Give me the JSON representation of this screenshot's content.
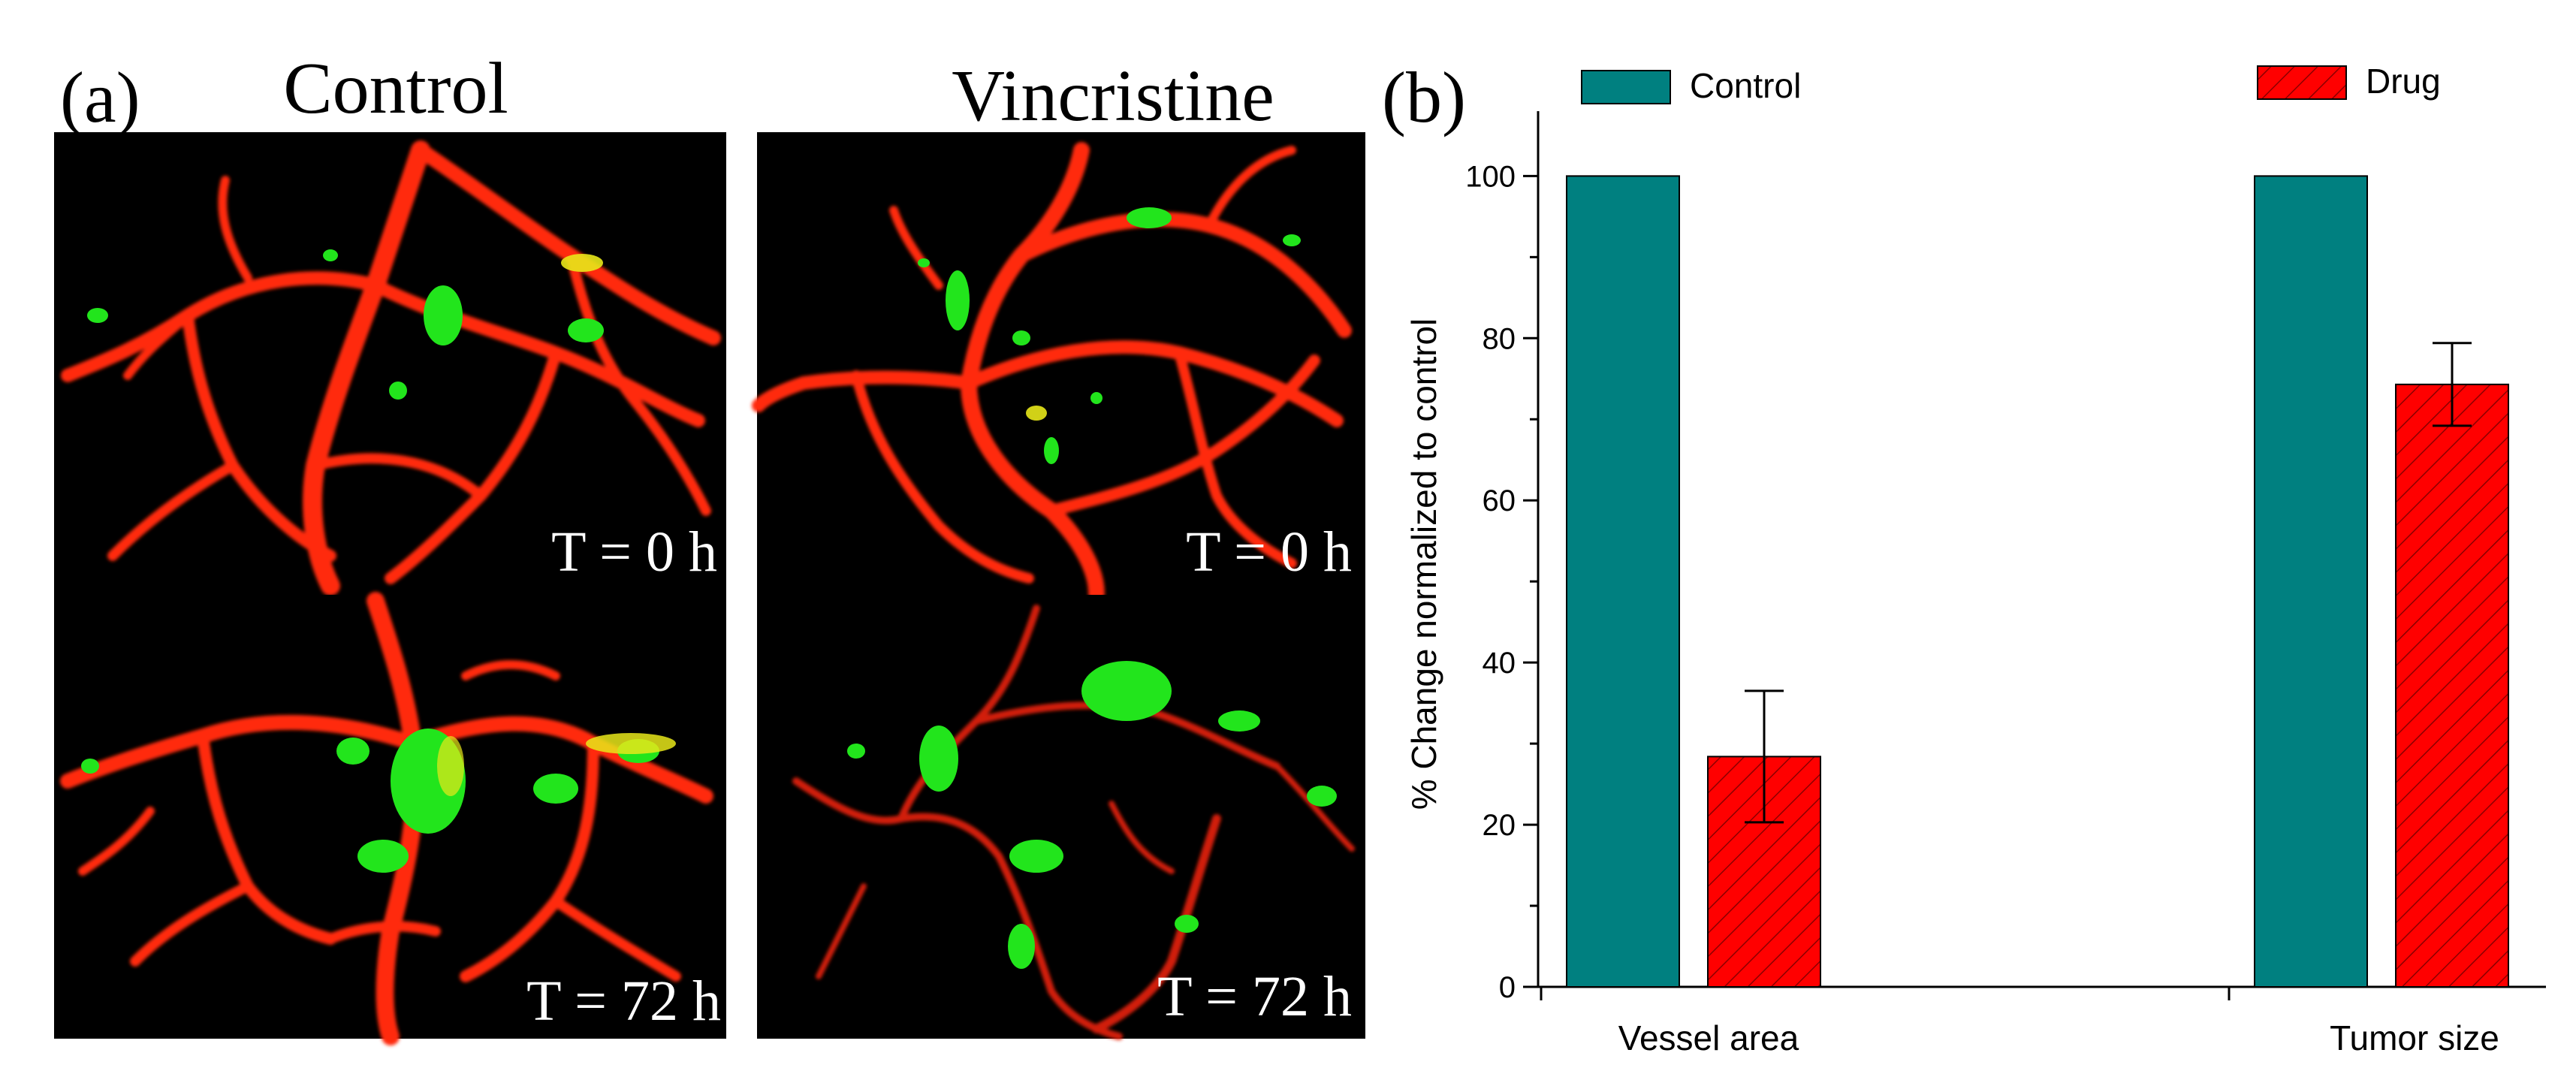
{
  "panel_a": {
    "label": "(a)",
    "columns": [
      "Control",
      "Vincristine"
    ],
    "timepoints": [
      "T = 0 h",
      "T = 72 h"
    ],
    "colors": {
      "vessel": "#ff2a10",
      "tumor": "#22e51c",
      "overlap": "#e8e81a",
      "background": "#000000"
    }
  },
  "panel_b": {
    "label": "(b)"
  },
  "chart_data": {
    "type": "bar",
    "categories": [
      "Vessel area",
      "Tumor size"
    ],
    "series": [
      {
        "name": "Control",
        "values": [
          100,
          100
        ],
        "color": "#008080",
        "hatch": false
      },
      {
        "name": "Drug",
        "values": [
          28.4,
          74.3
        ],
        "errors": [
          8.1,
          5.1
        ],
        "color": "#ff0000",
        "hatch": true
      }
    ],
    "title": "",
    "xlabel": "",
    "ylabel": "% Change normalized to control",
    "ylim": [
      0,
      108
    ],
    "yticks": [
      0,
      20,
      40,
      60,
      80,
      100
    ],
    "grid": false,
    "legend": "top, split left/right"
  }
}
